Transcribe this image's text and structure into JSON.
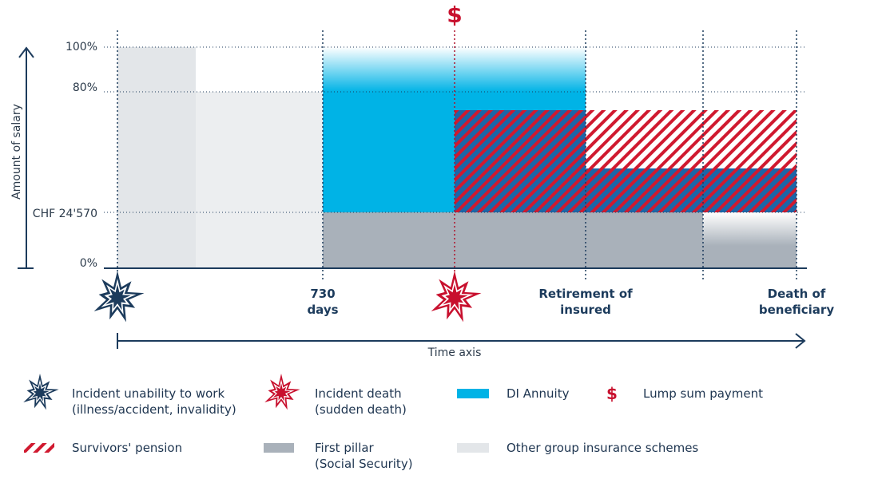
{
  "header": {
    "symbol": "$"
  },
  "y_axis": {
    "title": "Amount of salary",
    "labels": [
      "100%",
      "80%",
      "CHF 24'570",
      "0%"
    ]
  },
  "x_axis": {
    "title": "Time axis",
    "labels": [
      {
        "lines": [
          "730",
          "days"
        ]
      },
      {
        "lines": [
          "Retirement of",
          "insured"
        ]
      },
      {
        "lines": [
          "Death of",
          "beneficiary"
        ]
      }
    ]
  },
  "legend": [
    {
      "lines": [
        "Incident unability to work",
        "(illness/accident, invalidity)"
      ]
    },
    {
      "lines": [
        "Incident death",
        "(sudden death)"
      ]
    },
    {
      "lines": [
        "DI Annuity"
      ]
    },
    {
      "icon": "$",
      "lines": [
        "Lump sum payment"
      ]
    },
    {
      "lines": [
        "Survivors' pension"
      ]
    },
    {
      "lines": [
        "First pillar",
        "(Social Security)"
      ]
    },
    {
      "lines": [
        "Other group insurance schemes"
      ]
    }
  ]
}
